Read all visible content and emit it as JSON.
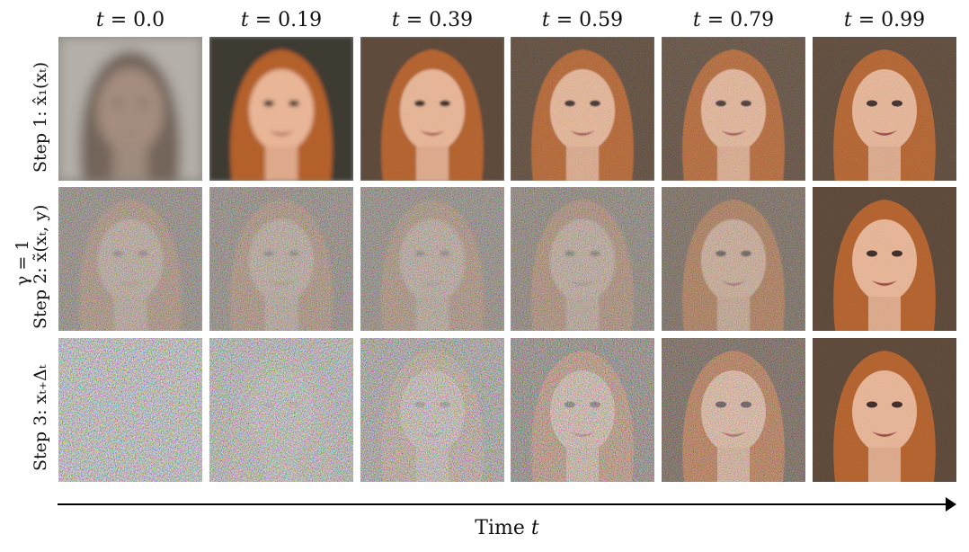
{
  "columns": [
    {
      "label_prefix": "t = ",
      "value": "0.0"
    },
    {
      "label_prefix": "t = ",
      "value": "0.19"
    },
    {
      "label_prefix": "t = ",
      "value": "0.39"
    },
    {
      "label_prefix": "t = ",
      "value": "0.59"
    },
    {
      "label_prefix": "t = ",
      "value": "0.79"
    },
    {
      "label_prefix": "t = ",
      "value": "0.99"
    }
  ],
  "rows": [
    {
      "label": "Step 1: x̂₁(xₜ)"
    },
    {
      "label": "Step 2: x̃(xₜ, y)"
    },
    {
      "label": "Step 3: xₜ₊Δₜ"
    }
  ],
  "gamma_label": "γ = 1",
  "axis": {
    "title_prefix": "Time ",
    "title_var": "t"
  },
  "colors": {
    "hair": "#b4602c",
    "skin": "#e8b596",
    "background": "#5a4434"
  }
}
